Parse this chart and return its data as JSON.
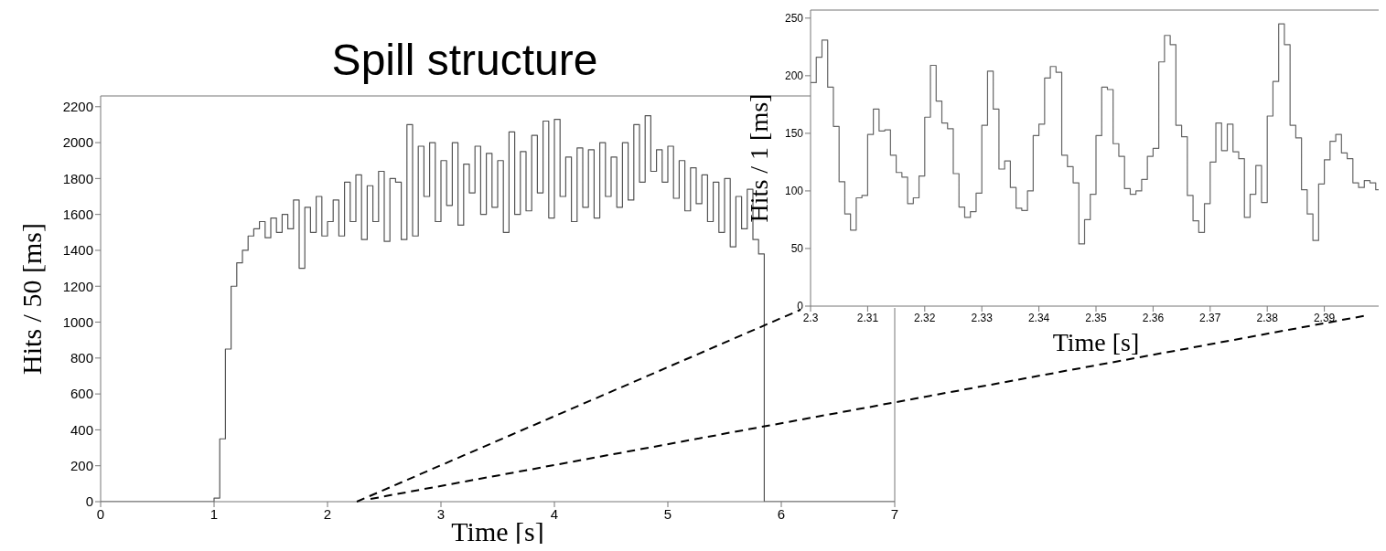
{
  "chart_data": [
    {
      "type": "histogram",
      "title": "Spill structure",
      "xlabel": "Time [s]",
      "ylabel": "Hits / 50 [ms]",
      "color": "#555555",
      "xlim": [
        0,
        7
      ],
      "ylim": [
        0,
        2260
      ],
      "xticks": [
        0,
        1,
        2,
        3,
        4,
        5,
        6,
        7
      ],
      "yticks": [
        0,
        200,
        400,
        600,
        800,
        1000,
        1200,
        1400,
        1600,
        1800,
        2000,
        2200
      ],
      "bins": [
        0,
        0.05,
        0.1,
        0.15,
        0.2,
        0.25,
        0.3,
        0.35,
        0.4,
        0.45,
        0.5,
        0.55,
        0.6,
        0.65,
        0.7,
        0.75,
        0.8,
        0.85,
        0.9,
        0.95,
        1,
        1.05,
        1.1,
        1.15,
        1.2,
        1.25,
        1.3,
        1.35,
        1.4,
        1.45,
        1.5,
        1.55,
        1.6,
        1.65,
        1.7,
        1.75,
        1.8,
        1.85,
        1.9,
        1.95,
        2,
        2.05,
        2.1,
        2.15,
        2.2,
        2.25,
        2.3,
        2.35,
        2.4,
        2.45,
        2.5,
        2.55,
        2.6,
        2.65,
        2.7,
        2.75,
        2.8,
        2.85,
        2.9,
        2.95,
        3,
        3.05,
        3.1,
        3.15,
        3.2,
        3.25,
        3.3,
        3.35,
        3.4,
        3.45,
        3.5,
        3.55,
        3.6,
        3.65,
        3.7,
        3.75,
        3.8,
        3.85,
        3.9,
        3.95,
        4,
        4.05,
        4.1,
        4.15,
        4.2,
        4.25,
        4.3,
        4.35,
        4.4,
        4.45,
        4.5,
        4.55,
        4.6,
        4.65,
        4.7,
        4.75,
        4.8,
        4.85,
        4.9,
        4.95,
        5,
        5.05,
        5.1,
        5.15,
        5.2,
        5.25,
        5.3,
        5.35,
        5.4,
        5.45,
        5.5,
        5.55,
        5.6,
        5.65,
        5.7,
        5.75,
        5.8,
        5.85,
        5.9,
        5.95,
        6,
        6.05,
        6.1,
        6.15,
        6.2,
        6.25,
        6.3,
        6.35,
        6.4,
        6.45,
        6.5,
        6.55,
        6.6,
        6.65,
        6.7,
        6.75,
        6.8,
        6.85,
        6.9,
        6.95,
        7
      ],
      "values": [
        0,
        0,
        0,
        0,
        0,
        0,
        0,
        0,
        0,
        0,
        0,
        0,
        0,
        0,
        0,
        0,
        0,
        0,
        0,
        0,
        20,
        350,
        850,
        1200,
        1330,
        1400,
        1480,
        1520,
        1560,
        1470,
        1580,
        1500,
        1600,
        1520,
        1680,
        1300,
        1640,
        1500,
        1700,
        1480,
        1560,
        1680,
        1480,
        1780,
        1560,
        1820,
        1460,
        1760,
        1560,
        1840,
        1450,
        1800,
        1780,
        1460,
        2100,
        1480,
        1980,
        1700,
        2000,
        1560,
        1900,
        1650,
        2000,
        1540,
        1880,
        1720,
        1980,
        1600,
        1940,
        1640,
        1900,
        1500,
        2060,
        1600,
        1950,
        1620,
        2040,
        1720,
        2120,
        1580,
        2130,
        1700,
        1920,
        1560,
        1970,
        1640,
        1960,
        1580,
        2000,
        1700,
        1920,
        1640,
        2000,
        1680,
        2100,
        1780,
        2150,
        1840,
        1960,
        1780,
        1980,
        1690,
        1900,
        1620,
        1860,
        1660,
        1820,
        1560,
        1780,
        1500,
        1800,
        1420,
        1700,
        1520,
        1740,
        1460,
        1380,
        0,
        0,
        0,
        0,
        0,
        0,
        0,
        0,
        0,
        0,
        0,
        0,
        0,
        0,
        0,
        0,
        0,
        0,
        0,
        0,
        0,
        0,
        0
      ]
    },
    {
      "type": "histogram",
      "xlabel": "Time [s]",
      "ylabel": "Hits / 1 [ms]",
      "color": "#666666",
      "xlim": [
        2.3,
        2.4
      ],
      "ylim": [
        0,
        257
      ],
      "xticks": [
        2.3,
        2.31,
        2.32,
        2.33,
        2.34,
        2.35,
        2.36,
        2.37,
        2.38,
        2.39
      ],
      "yticks": [
        0,
        50,
        100,
        150,
        200,
        250
      ],
      "bins": [
        2.3,
        2.301,
        2.302,
        2.303,
        2.304,
        2.305,
        2.306,
        2.307,
        2.308,
        2.309,
        2.31,
        2.311,
        2.312,
        2.313,
        2.314,
        2.315,
        2.316,
        2.317,
        2.318,
        2.319,
        2.32,
        2.321,
        2.322,
        2.323,
        2.324,
        2.325,
        2.326,
        2.327,
        2.328,
        2.329,
        2.33,
        2.331,
        2.332,
        2.333,
        2.334,
        2.335,
        2.336,
        2.337,
        2.338,
        2.339,
        2.34,
        2.341,
        2.342,
        2.343,
        2.344,
        2.345,
        2.346,
        2.347,
        2.348,
        2.349,
        2.35,
        2.351,
        2.352,
        2.353,
        2.354,
        2.355,
        2.356,
        2.357,
        2.358,
        2.359,
        2.36,
        2.361,
        2.362,
        2.363,
        2.364,
        2.365,
        2.366,
        2.367,
        2.368,
        2.369,
        2.37,
        2.371,
        2.372,
        2.373,
        2.374,
        2.375,
        2.376,
        2.377,
        2.378,
        2.379,
        2.38,
        2.381,
        2.382,
        2.383,
        2.384,
        2.385,
        2.386,
        2.387,
        2.388,
        2.389,
        2.39,
        2.391,
        2.392,
        2.393,
        2.394,
        2.395,
        2.396,
        2.397,
        2.398,
        2.399,
        2.4
      ],
      "values": [
        194,
        216,
        231,
        190,
        156,
        108,
        80,
        66,
        94,
        96,
        149,
        171,
        152,
        153,
        131,
        116,
        112,
        89,
        94,
        113,
        164,
        209,
        178,
        159,
        154,
        115,
        86,
        77,
        82,
        98,
        157,
        204,
        171,
        119,
        126,
        103,
        85,
        83,
        100,
        148,
        158,
        198,
        208,
        203,
        131,
        121,
        107,
        54,
        75,
        97,
        148,
        190,
        188,
        141,
        130,
        102,
        97,
        100,
        110,
        130,
        137,
        212,
        235,
        227,
        157,
        147,
        96,
        74,
        64,
        89,
        125,
        159,
        135,
        158,
        134,
        128,
        77,
        97,
        122,
        90,
        165,
        195,
        245,
        227,
        157,
        146,
        101,
        80,
        57,
        106,
        127,
        143,
        149,
        133,
        128,
        107,
        103,
        109,
        107,
        101
      ]
    }
  ]
}
